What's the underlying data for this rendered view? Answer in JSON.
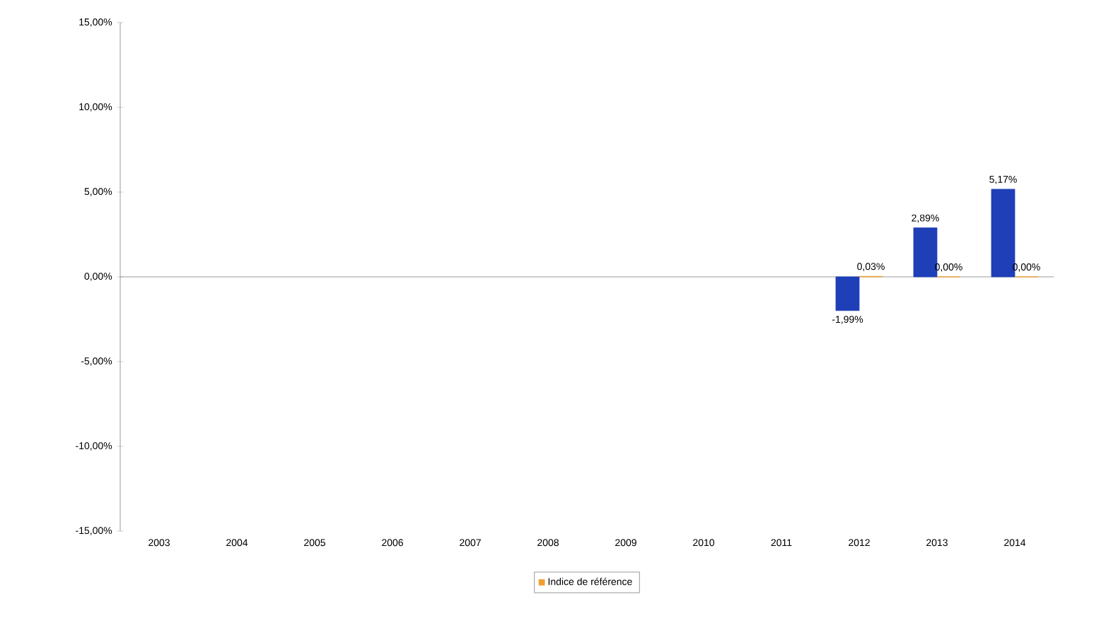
{
  "chart_data": {
    "type": "bar",
    "categories": [
      "2003",
      "2004",
      "2005",
      "2006",
      "2007",
      "2008",
      "2009",
      "2010",
      "2011",
      "2012",
      "2013",
      "2014"
    ],
    "series": [
      {
        "color": "#1f3fb8",
        "values": [
          null,
          null,
          null,
          null,
          null,
          null,
          null,
          null,
          null,
          -1.99,
          2.89,
          5.17
        ],
        "value_labels": [
          null,
          null,
          null,
          null,
          null,
          null,
          null,
          null,
          null,
          "-1,99%",
          "2,89%",
          "5,17%"
        ]
      },
      {
        "name": "Indice de référence",
        "color": "#f0a030",
        "values": [
          null,
          null,
          null,
          null,
          null,
          null,
          null,
          null,
          null,
          0.03,
          0.0,
          0.0
        ],
        "value_labels": [
          null,
          null,
          null,
          null,
          null,
          null,
          null,
          null,
          null,
          "0,03%",
          "0,00%",
          "0,00%"
        ]
      }
    ],
    "ylim": [
      -15,
      15
    ],
    "yticks": [
      {
        "value": -15,
        "label": "-15,00%"
      },
      {
        "value": -10,
        "label": "-10,00%"
      },
      {
        "value": -5,
        "label": "-5,00%"
      },
      {
        "value": 0,
        "label": "0,00%"
      },
      {
        "value": 5,
        "label": "5,00%"
      },
      {
        "value": 10,
        "label": "10,00%"
      },
      {
        "value": 15,
        "label": "15,00%"
      }
    ],
    "legend": "bottom"
  }
}
